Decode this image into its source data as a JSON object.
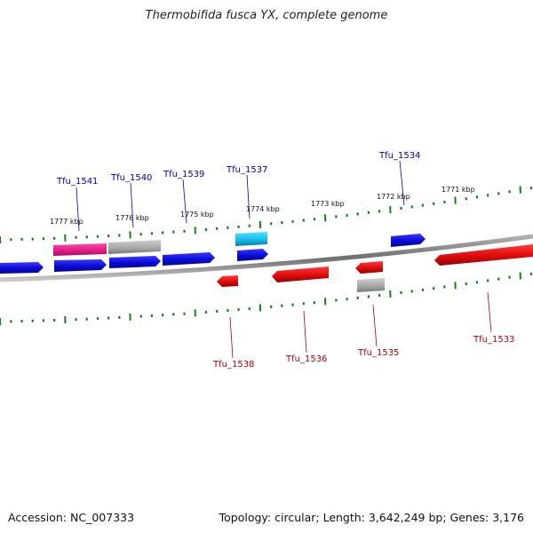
{
  "title": "Thermobifida fusca YX, complete genome",
  "footer": {
    "accession": "Accession: NC_007333",
    "summary": "Topology: circular; Length: 3,642,249 bp; Genes: 3,176"
  },
  "colors": {
    "forward_gene": "#1010e6",
    "reverse_gene": "#e61010",
    "pink_gene": "#e61a8c",
    "gray_gene": "#a9a9a9",
    "cyan_gene": "#12b8e6",
    "tick": "#1a7f1a",
    "backbone": "#808080",
    "forward_label": "#0000a0",
    "reverse_label": "#b00000"
  },
  "kbp_labels": [
    "1777 kbp",
    "1776 kbp",
    "1775 kbp",
    "1774 kbp",
    "1773 kbp",
    "1772 kbp",
    "1771 kbp"
  ],
  "forward_labels": [
    "Tfu_1541",
    "Tfu_1540",
    "Tfu_1539",
    "Tfu_1537",
    "Tfu_1534"
  ],
  "reverse_labels": [
    "Tfu_1538",
    "Tfu_1536",
    "Tfu_1535",
    "Tfu_1533"
  ]
}
